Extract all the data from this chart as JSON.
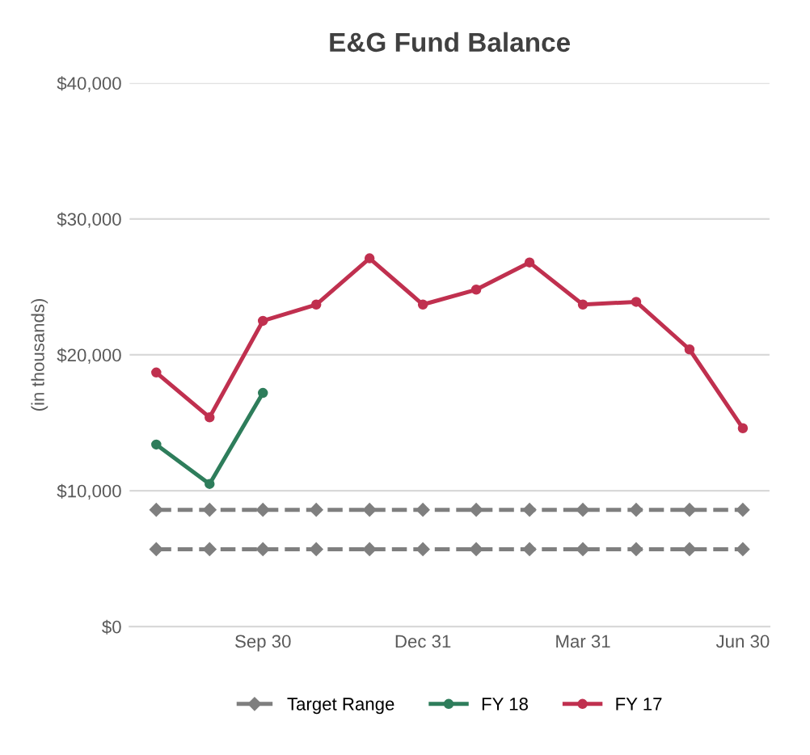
{
  "chart_data": {
    "type": "line",
    "title": "E&G Fund Balance",
    "ylabel": "(in thousands)",
    "categories": [
      null,
      null,
      "Sep 30",
      null,
      null,
      "Dec 31",
      null,
      null,
      "Mar 31",
      null,
      null,
      "Jun 30"
    ],
    "series": [
      {
        "name": "Target Range",
        "color": "#7f7f7f",
        "line_style": "dashed",
        "marker": "diamond",
        "values": [
          8600,
          8600,
          8600,
          8600,
          8600,
          8600,
          8600,
          8600,
          8600,
          8600,
          8600,
          8600
        ]
      },
      {
        "color": "#7f7f7f",
        "line_style": "dashed",
        "marker": "diamond",
        "values": [
          5700,
          5700,
          5700,
          5700,
          5700,
          5700,
          5700,
          5700,
          5700,
          5700,
          5700,
          5700
        ]
      },
      {
        "name": "FY 18",
        "color": "#2e7d5b",
        "line_style": "solid",
        "marker": "circle",
        "values": [
          13400,
          10500,
          17200,
          null,
          null,
          null,
          null,
          null,
          null,
          null,
          null,
          null
        ]
      },
      {
        "name": "FY 17",
        "color": "#c0304f",
        "line_style": "solid",
        "marker": "circle",
        "values": [
          18700,
          15400,
          22500,
          23700,
          27100,
          23700,
          24800,
          26800,
          23700,
          23900,
          20400,
          14600
        ]
      }
    ],
    "ylim": [
      0,
      40000
    ],
    "yticks": [
      {
        "value": 0,
        "label": "$0"
      },
      {
        "value": 10000,
        "label": "$10,000"
      },
      {
        "value": 20000,
        "label": "$20,000"
      },
      {
        "value": 30000,
        "label": "$30,000"
      },
      {
        "value": 40000,
        "label": "$40,000"
      }
    ],
    "grid": "y",
    "legend": "bottom"
  }
}
